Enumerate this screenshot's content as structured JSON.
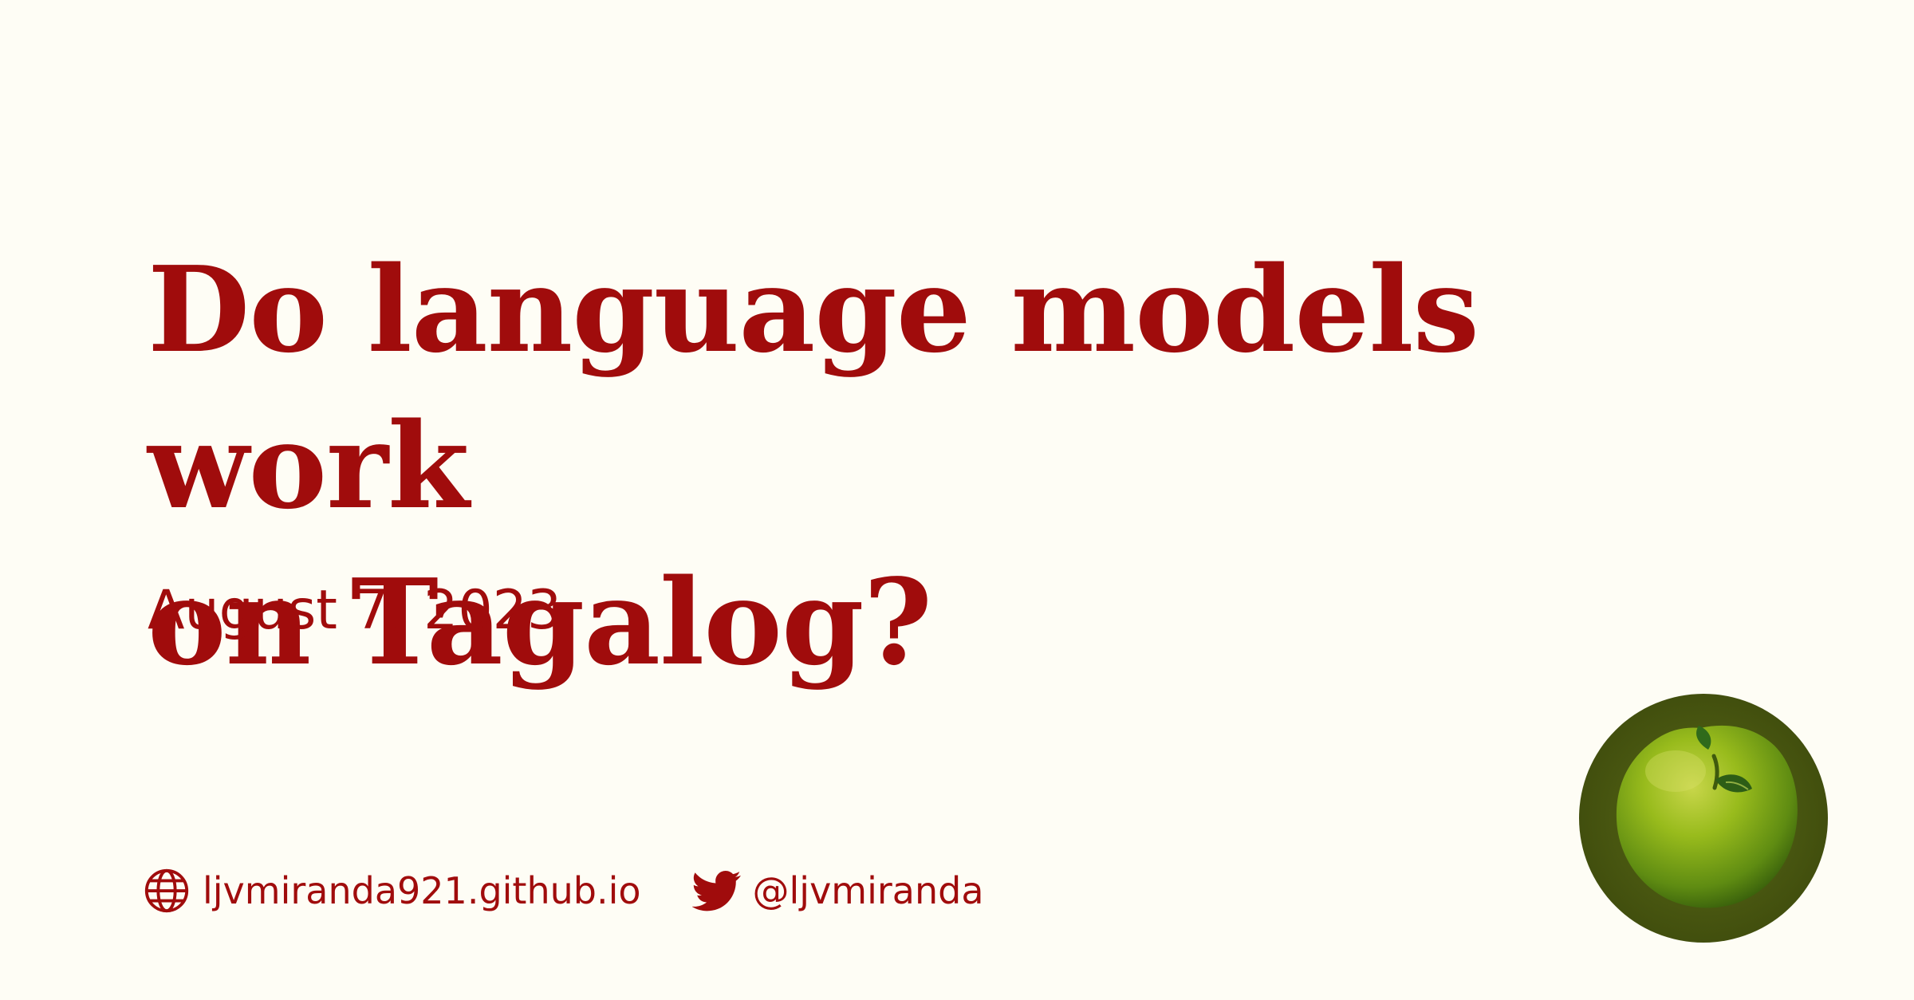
{
  "card": {
    "title_line_1": "Do language models work",
    "title_line_2": "on Tagalog?",
    "date": "August 7, 2023"
  },
  "footer": {
    "website": {
      "icon": "globe-icon",
      "label": "ljvmiranda921.github.io"
    },
    "twitter": {
      "icon": "twitter-bird-icon",
      "label": "@ljvmiranda"
    }
  },
  "logo": {
    "icon": "green-apple-icon"
  },
  "colors": {
    "background": "#fefdf5",
    "accent": "#a00c0c",
    "logo_ring": "#4b5a12",
    "apple": "#7aa81a"
  }
}
